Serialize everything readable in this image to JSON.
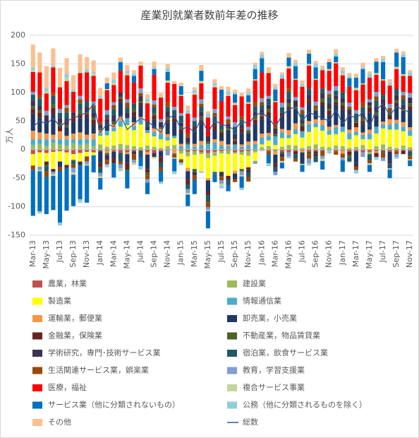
{
  "chart_data": {
    "type": "stacked_bar",
    "title": "産業別就業者数前年差の推移",
    "y_label": "万人",
    "ylim": [
      -150,
      200
    ],
    "yticks": [
      -150,
      -100,
      -50,
      0,
      50,
      100,
      150,
      200
    ],
    "grid": true,
    "categories": [
      "Mar-13",
      null,
      "May-13",
      null,
      "Jul-13",
      null,
      "Sep-13",
      null,
      "Nov-13",
      null,
      "Jan-14",
      null,
      "Mar-14",
      null,
      "May-14",
      null,
      "Jul-14",
      null,
      "Sep-14",
      null,
      "Nov-14",
      null,
      "Jan-15",
      null,
      "Mar-15",
      null,
      "May-15",
      null,
      "Jul-15",
      null,
      "Sep-15",
      null,
      "Nov-15",
      null,
      "Jan-16",
      null,
      "Mar-16",
      null,
      "May-16",
      null,
      "Jul-16",
      null,
      "Sep-16",
      null,
      "Nov-16",
      null,
      "Jan-17",
      null,
      "Mar-17",
      null,
      "May-17",
      null,
      "Jul-17",
      null,
      "Sep-17",
      null,
      "Nov-17"
    ],
    "series": [
      {
        "name": "農業，林業",
        "color": "#c0504d",
        "values": [
          -8,
          -5,
          -6,
          -4,
          -3,
          -5,
          -8,
          -6,
          -4,
          -5,
          -3,
          -2,
          -4,
          -6,
          -5,
          -3,
          -2,
          -4,
          -6,
          -3,
          -2,
          -1,
          -2,
          -4,
          -3,
          -5,
          -6,
          -4,
          -3,
          -2,
          -5,
          -4,
          -3,
          -2,
          -1,
          -3,
          -2,
          -4,
          -5,
          -3,
          -2,
          -4,
          -3,
          -2,
          -1,
          -3,
          -2,
          -4,
          -3,
          -5,
          -4,
          -3,
          -2,
          -4,
          -3,
          -2,
          -3
        ]
      },
      {
        "name": "建設業",
        "color": "#9bbb59",
        "values": [
          8,
          10,
          6,
          12,
          9,
          7,
          11,
          8,
          10,
          6,
          9,
          5,
          7,
          10,
          8,
          6,
          4,
          7,
          5,
          3,
          6,
          8,
          -5,
          -8,
          -6,
          -3,
          -9,
          -7,
          -4,
          -6,
          -2,
          -5,
          -8,
          -3,
          4,
          6,
          -3,
          5,
          8,
          7,
          3,
          6,
          9,
          5,
          4,
          7,
          6,
          3,
          5,
          8,
          -4,
          6,
          9,
          5,
          3,
          7,
          4
        ]
      },
      {
        "name": "製造業",
        "color": "#ffff00",
        "values": [
          -20,
          -25,
          -15,
          -30,
          -18,
          -22,
          -10,
          -15,
          -8,
          -5,
          15,
          20,
          25,
          30,
          35,
          28,
          40,
          22,
          18,
          15,
          10,
          12,
          -10,
          -20,
          -25,
          -30,
          -35,
          -28,
          -32,
          -38,
          -30,
          -25,
          -20,
          -15,
          5,
          10,
          8,
          15,
          12,
          20,
          18,
          25,
          30,
          28,
          22,
          20,
          25,
          15,
          20,
          10,
          18,
          22,
          28,
          30,
          32,
          25,
          20
        ]
      },
      {
        "name": "情報通信業",
        "color": "#4bacc6",
        "values": [
          10,
          8,
          12,
          6,
          9,
          11,
          7,
          10,
          8,
          12,
          5,
          8,
          6,
          10,
          12,
          7,
          9,
          5,
          8,
          10,
          6,
          4,
          6,
          9,
          5,
          8,
          10,
          12,
          7,
          6,
          9,
          5,
          8,
          10,
          12,
          8,
          15,
          10,
          6,
          9,
          11,
          14,
          7,
          10,
          8,
          12,
          9,
          11,
          6,
          8,
          10,
          12,
          7,
          9,
          11,
          8,
          10
        ]
      },
      {
        "name": "運輸業，郵便業",
        "color": "#f79646",
        "values": [
          15,
          12,
          10,
          8,
          14,
          6,
          10,
          12,
          8,
          10,
          5,
          -4,
          6,
          8,
          -3,
          7,
          4,
          -5,
          6,
          8,
          5,
          -6,
          4,
          -6,
          5,
          7,
          -4,
          6,
          8,
          3,
          -5,
          4,
          6,
          5,
          7,
          5,
          -4,
          6,
          8,
          10,
          -3,
          5,
          7,
          9,
          6,
          4,
          -5,
          6,
          8,
          4,
          7,
          -3,
          5,
          9,
          6,
          8,
          5
        ]
      },
      {
        "name": "卸売業，小売業",
        "color": "#1f3864",
        "values": [
          30,
          25,
          20,
          35,
          -10,
          15,
          20,
          25,
          30,
          15,
          -20,
          15,
          -10,
          25,
          -15,
          10,
          20,
          -25,
          15,
          -10,
          20,
          25,
          20,
          -15,
          25,
          30,
          -20,
          15,
          10,
          25,
          -10,
          20,
          15,
          30,
          25,
          30,
          -15,
          20,
          35,
          25,
          -20,
          30,
          15,
          25,
          20,
          35,
          30,
          25,
          -20,
          15,
          30,
          20,
          25,
          -15,
          25,
          20,
          30
        ]
      },
      {
        "name": "金融業，保険業",
        "color": "#632523",
        "values": [
          8,
          10,
          -6,
          12,
          9,
          -5,
          10,
          8,
          6,
          9,
          -8,
          5,
          -10,
          6,
          -12,
          8,
          5,
          -6,
          7,
          -9,
          5,
          6,
          6,
          -8,
          5,
          7,
          -6,
          9,
          5,
          -7,
          6,
          8,
          -5,
          7,
          5,
          7,
          -6,
          8,
          6,
          -5,
          9,
          7,
          -4,
          6,
          8,
          5,
          7,
          -6,
          8,
          5,
          9,
          -7,
          6,
          8,
          5,
          -6,
          7
        ]
      },
      {
        "name": "不動産業，物品賃貸業",
        "color": "#4f6228",
        "values": [
          5,
          4,
          -3,
          6,
          5,
          4,
          -2,
          5,
          3,
          4,
          3,
          -4,
          5,
          4,
          -3,
          6,
          3,
          -5,
          4,
          3,
          5,
          -2,
          4,
          3,
          -5,
          6,
          4,
          -3,
          5,
          4,
          3,
          -4,
          5,
          6,
          3,
          5,
          4,
          -3,
          6,
          4,
          5,
          -4,
          3,
          6,
          4,
          5,
          5,
          -3,
          4,
          6,
          3,
          5,
          -4,
          6,
          4,
          3,
          5
        ]
      },
      {
        "name": "学術研究，専門･技術サービス業",
        "color": "#3f3151",
        "values": [
          10,
          8,
          12,
          -5,
          9,
          11,
          7,
          -6,
          10,
          8,
          6,
          -8,
          10,
          7,
          9,
          -5,
          8,
          6,
          -7,
          9,
          10,
          5,
          7,
          9,
          -6,
          8,
          10,
          5,
          -8,
          7,
          9,
          6,
          -5,
          8,
          9,
          7,
          10,
          -6,
          8,
          11,
          7,
          9,
          -5,
          10,
          8,
          6,
          8,
          10,
          -7,
          9,
          6,
          11,
          8,
          -5,
          9,
          7,
          10
        ]
      },
      {
        "name": "宿泊業，飲食サービス業",
        "color": "#215967",
        "values": [
          10,
          12,
          -8,
          15,
          9,
          11,
          -6,
          13,
          10,
          8,
          -10,
          8,
          12,
          -15,
          10,
          9,
          -12,
          8,
          11,
          -10,
          7,
          9,
          12,
          -8,
          10,
          9,
          -12,
          11,
          8,
          -10,
          13,
          9,
          -7,
          10,
          8,
          11,
          -9,
          10,
          12,
          -8,
          9,
          11,
          -10,
          8,
          12,
          9,
          10,
          -8,
          12,
          9,
          -11,
          10,
          8,
          -9,
          11,
          10,
          -8
        ]
      },
      {
        "name": "生活関連サービス業，娯楽業",
        "color": "#984807",
        "values": [
          -8,
          6,
          -10,
          5,
          -7,
          8,
          -6,
          7,
          -9,
          5,
          6,
          -8,
          7,
          -5,
          8,
          -10,
          6,
          -7,
          5,
          -6,
          8,
          -5,
          -6,
          7,
          -8,
          5,
          -9,
          6,
          -7,
          8,
          -5,
          6,
          -8,
          7,
          5,
          -6,
          8,
          -7,
          6,
          -5,
          7,
          -8,
          6,
          -9,
          5,
          -6,
          -7,
          5,
          -6,
          8,
          -5,
          7,
          -8,
          6,
          -5,
          7,
          -6
        ]
      },
      {
        "name": "教育，学習支援業",
        "color": "#7f9fd0",
        "values": [
          5,
          -6,
          8,
          -4,
          7,
          5,
          -8,
          6,
          -5,
          7,
          -6,
          8,
          5,
          -7,
          6,
          -5,
          8,
          -6,
          7,
          5,
          -8,
          6,
          5,
          -7,
          6,
          8,
          -5,
          7,
          -6,
          5,
          8,
          -7,
          6,
          -5,
          7,
          5,
          -6,
          8,
          -7,
          6,
          5,
          -8,
          7,
          -5,
          6,
          8,
          -5,
          7,
          6,
          -8,
          5,
          8,
          -6,
          7,
          -5,
          6,
          8
        ]
      },
      {
        "name": "医療，福祉",
        "color": "#ff0000",
        "values": [
          35,
          40,
          30,
          45,
          38,
          42,
          36,
          40,
          50,
          45,
          40,
          35,
          30,
          38,
          42,
          36,
          40,
          33,
          45,
          38,
          35,
          40,
          30,
          35,
          40,
          28,
          32,
          38,
          42,
          36,
          30,
          35,
          40,
          38,
          45,
          40,
          38,
          42,
          35,
          30,
          36,
          40,
          38,
          32,
          35,
          40,
          30,
          28,
          35,
          32,
          38,
          30,
          25,
          32,
          35,
          28,
          30
        ]
      },
      {
        "name": "複合サービス事業",
        "color": "#c3d69b",
        "values": [
          3,
          -2,
          4,
          -3,
          2,
          5,
          -4,
          3,
          -2,
          4,
          -3,
          2,
          4,
          -2,
          3,
          -4,
          2,
          3,
          -3,
          2,
          4,
          -2,
          2,
          -3,
          3,
          4,
          -2,
          3,
          -3,
          2,
          4,
          -2,
          3,
          2,
          -2,
          3,
          2,
          -3,
          4,
          2,
          -2,
          3,
          2,
          -4,
          3,
          2,
          3,
          -2,
          4,
          2,
          -3,
          3,
          2,
          -2,
          4,
          3,
          -2
        ]
      },
      {
        "name": "サービス業（他に分類されないもの）",
        "color": "#0070c0",
        "values": [
          -80,
          -70,
          -65,
          -60,
          -90,
          -75,
          -55,
          -60,
          -65,
          -30,
          -20,
          10,
          -25,
          15,
          -30,
          12,
          -15,
          -20,
          10,
          -18,
          15,
          -22,
          15,
          -20,
          -25,
          18,
          -30,
          -15,
          20,
          -10,
          15,
          -20,
          12,
          18,
          25,
          -15,
          20,
          -10,
          15,
          22,
          -12,
          18,
          20,
          -15,
          12,
          10,
          -20,
          15,
          18,
          25,
          -12,
          20,
          30,
          -15,
          25,
          30,
          -10
        ]
      },
      {
        "name": "公務（他に分類されるものを除く）",
        "color": "#92cddc",
        "values": [
          5,
          -4,
          6,
          3,
          -5,
          7,
          4,
          -6,
          5,
          3,
          4,
          -5,
          6,
          -3,
          5,
          4,
          -6,
          5,
          3,
          -4,
          6,
          -5,
          -4,
          6,
          5,
          -3,
          7,
          4,
          -5,
          6,
          3,
          -4,
          5,
          7,
          6,
          -5,
          4,
          7,
          -3,
          6,
          5,
          -4,
          7,
          3,
          -6,
          5,
          5,
          4,
          -6,
          3,
          7,
          -5,
          6,
          4,
          -3,
          5,
          6
        ]
      },
      {
        "name": "その他",
        "color": "#fac090",
        "values": [
          40,
          35,
          38,
          30,
          32,
          28,
          25,
          30,
          22,
          20,
          15,
          10,
          12,
          8,
          10,
          6,
          5,
          8,
          10,
          6,
          8,
          5,
          6,
          8,
          5,
          10,
          4,
          7,
          6,
          8,
          5,
          6,
          7,
          4,
          5,
          7,
          6,
          4,
          8,
          5,
          6,
          7,
          4,
          5,
          6,
          8,
          6,
          5,
          7,
          8,
          4,
          6,
          5,
          7,
          6,
          5,
          4
        ]
      }
    ],
    "total": {
      "name": "総数",
      "color": "#2f5597",
      "values": [
        40,
        50,
        45,
        55,
        40,
        50,
        55,
        60,
        65,
        80,
        30,
        45,
        40,
        60,
        35,
        45,
        55,
        50,
        40,
        30,
        55,
        60,
        35,
        40,
        30,
        55,
        30,
        50,
        45,
        40,
        35,
        50,
        45,
        60,
        65,
        55,
        40,
        60,
        70,
        75,
        50,
        65,
        60,
        55,
        50,
        70,
        45,
        60,
        55,
        65,
        40,
        70,
        80,
        60,
        75,
        70,
        65
      ]
    }
  }
}
